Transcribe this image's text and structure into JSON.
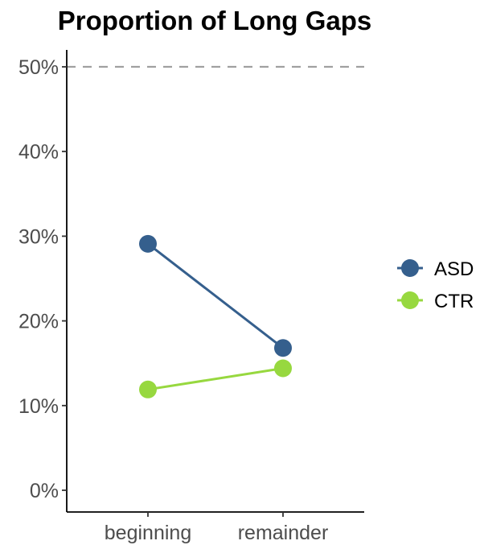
{
  "chart_data": {
    "type": "line",
    "title": "Proportion of Long Gaps",
    "xlabel": "",
    "ylabel": "",
    "categories": [
      "beginning",
      "remainder"
    ],
    "ylim": [
      -0.02,
      0.5
    ],
    "yticks": [
      0,
      0.1,
      0.2,
      0.3,
      0.4,
      0.5
    ],
    "ytick_labels": [
      "0%",
      "10%",
      "20%",
      "30%",
      "40%",
      "50%"
    ],
    "reference_line": {
      "y": 0.5,
      "style": "dashed",
      "color": "#a0a0a0"
    },
    "series": [
      {
        "name": "ASD",
        "color": "#355f8d",
        "values": [
          0.291,
          0.168
        ]
      },
      {
        "name": "CTR",
        "color": "#97d83f",
        "values": [
          0.119,
          0.144
        ]
      }
    ],
    "legend": {
      "position": "right",
      "entries": [
        "ASD",
        "CTR"
      ]
    },
    "grid": false
  }
}
